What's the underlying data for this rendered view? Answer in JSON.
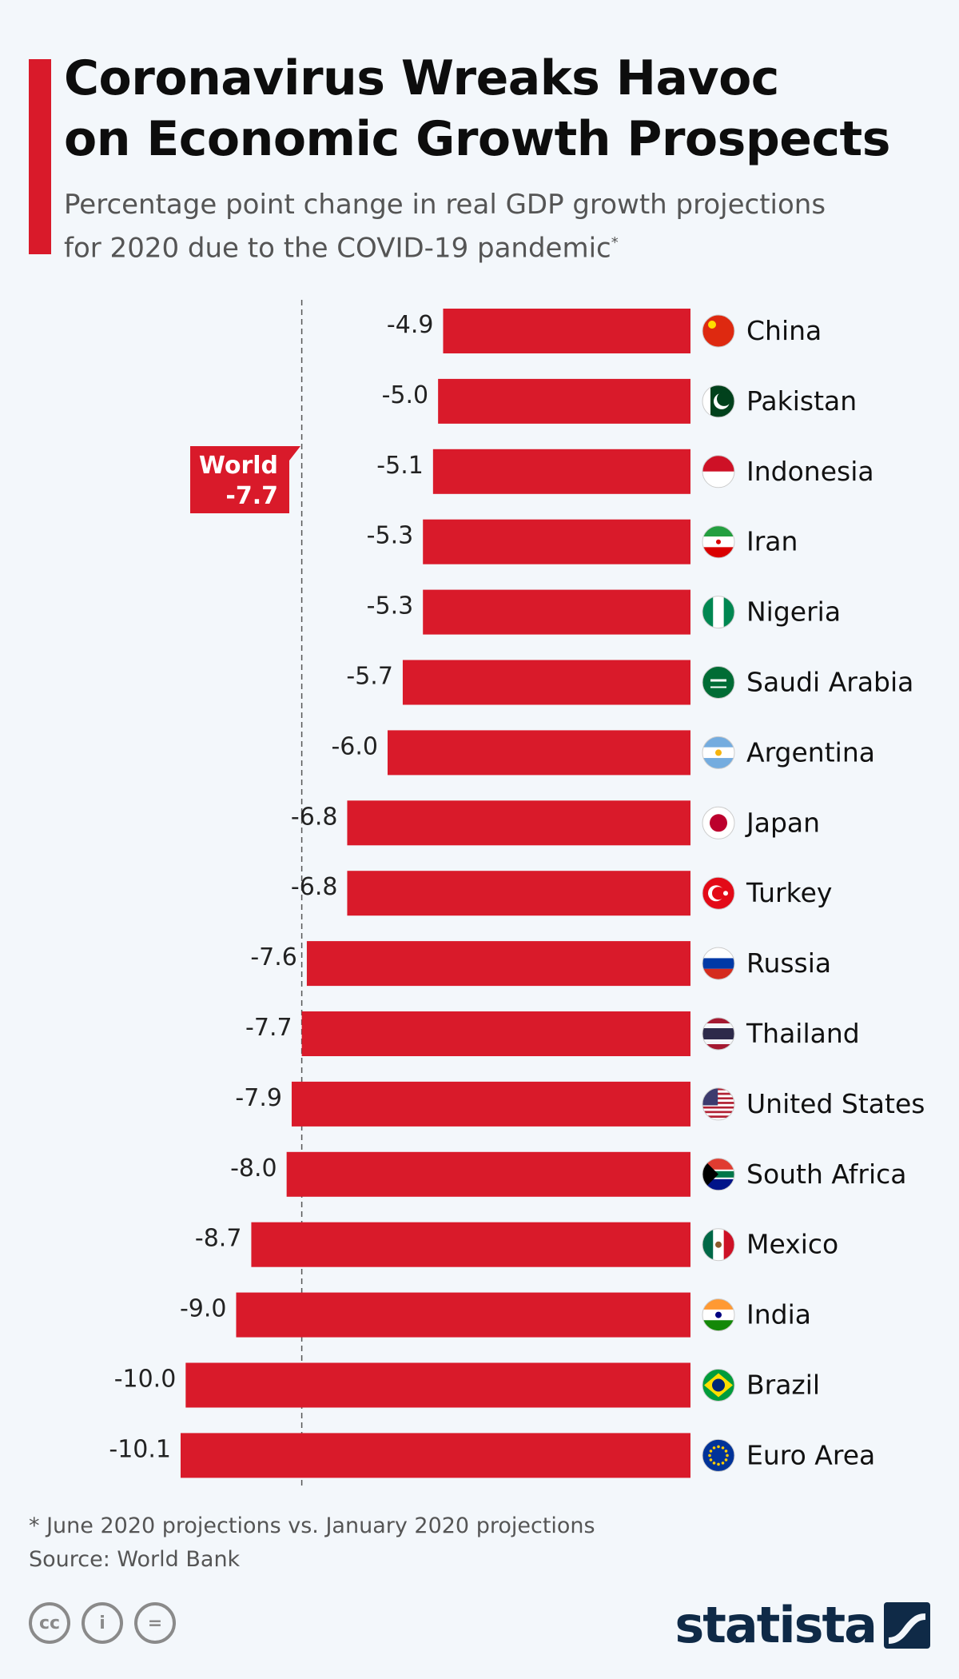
{
  "header": {
    "title_line1": "Coronavirus Wreaks Havoc",
    "title_line2": "on Economic Growth Prospects",
    "subtitle_line1": "Percentage point change in real GDP growth projections",
    "subtitle_line2": "for 2020 due to the COVID-19 pandemic",
    "subtitle_mark": "*"
  },
  "chart_data": {
    "type": "bar",
    "orientation": "horizontal",
    "title": "Coronavirus Wreaks Havoc on Economic Growth Prospects",
    "subtitle": "Percentage point change in real GDP growth projections for 2020 due to the COVID-19 pandemic*",
    "unit": "percentage points",
    "categories": [
      "China",
      "Pakistan",
      "Indonesia",
      "Iran",
      "Nigeria",
      "Saudi Arabia",
      "Argentina",
      "Japan",
      "Turkey",
      "Russia",
      "Thailand",
      "United States",
      "South Africa",
      "Mexico",
      "India",
      "Brazil",
      "Euro Area"
    ],
    "values": [
      -4.9,
      -5.0,
      -5.1,
      -5.3,
      -5.3,
      -5.7,
      -6.0,
      -6.8,
      -6.8,
      -7.6,
      -7.7,
      -7.9,
      -8.0,
      -8.7,
      -9.0,
      -10.0,
      -10.1
    ],
    "value_labels": [
      "-4.9",
      "-5.0",
      "-5.1",
      "-5.3",
      "-5.3",
      "-5.7",
      "-6.0",
      "-6.8",
      "-6.8",
      "-7.6",
      "-7.7",
      "-7.9",
      "-8.0",
      "-8.7",
      "-9.0",
      "-10.0",
      "-10.1"
    ],
    "flag_icons": [
      "china-flag-icon",
      "pakistan-flag-icon",
      "indonesia-flag-icon",
      "iran-flag-icon",
      "nigeria-flag-icon",
      "saudi-arabia-flag-icon",
      "argentina-flag-icon",
      "japan-flag-icon",
      "turkey-flag-icon",
      "russia-flag-icon",
      "thailand-flag-icon",
      "united-states-flag-icon",
      "south-africa-flag-icon",
      "mexico-flag-icon",
      "india-flag-icon",
      "brazil-flag-icon",
      "euro-area-flag-icon"
    ],
    "reference_line": {
      "label": "World",
      "value": -7.7,
      "value_label": "-7.7"
    },
    "xlim": [
      -10.1,
      0
    ],
    "bar_color": "#d91a2a",
    "grid": false
  },
  "footer": {
    "note": "* June 2020 projections vs. January 2020 projections",
    "source": "Source: World Bank",
    "brand": "statista",
    "license_icons": [
      "cc-icon",
      "by-icon",
      "nd-icon"
    ],
    "license_glyphs": [
      "cc",
      "i",
      "="
    ]
  },
  "colors": {
    "accent": "#d91a2a",
    "background": "#f3f7fb",
    "brand": "#0f2a47",
    "muted_text": "#555555"
  }
}
